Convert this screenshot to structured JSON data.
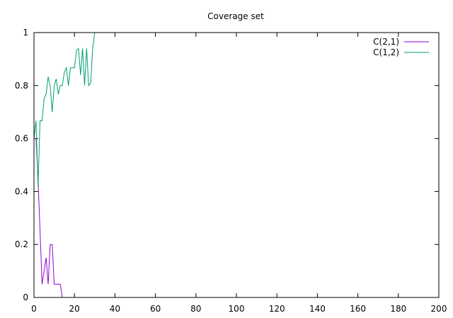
{
  "chart_data": {
    "type": "line",
    "title": "Coverage set",
    "xlabel": "",
    "ylabel": "",
    "xlim": [
      0,
      200
    ],
    "ylim": [
      0,
      1
    ],
    "xticks": [
      0,
      20,
      40,
      60,
      80,
      100,
      120,
      140,
      160,
      180,
      200
    ],
    "yticks": [
      0,
      0.2,
      0.4,
      0.6,
      0.8,
      1
    ],
    "ytick_labels": [
      "0",
      "0.2",
      "0.4",
      "0.6",
      "0.8",
      "1"
    ],
    "grid": false,
    "legend_position": "top-right",
    "series": [
      {
        "name": "C(2,1)",
        "color": "#9400d3",
        "x": [
          0,
          1,
          2,
          3,
          4,
          5,
          6,
          7,
          8,
          9,
          10,
          11,
          12,
          13,
          14,
          15,
          20,
          40,
          60,
          80,
          100,
          120,
          140,
          160,
          180,
          200
        ],
        "y": [
          0.6,
          0.6,
          0.45,
          0.25,
          0.05,
          0.1,
          0.15,
          0.05,
          0.2,
          0.2,
          0.05,
          0.05,
          0.05,
          0.05,
          0,
          0,
          0,
          0,
          0,
          0,
          0,
          0,
          0,
          0,
          0,
          0
        ]
      },
      {
        "name": "C(1,2)",
        "color": "#009e73",
        "x": [
          0,
          1,
          2,
          3,
          4,
          5,
          6,
          7,
          8,
          9,
          10,
          11,
          12,
          13,
          14,
          15,
          16,
          17,
          18,
          19,
          20,
          21,
          22,
          23,
          24,
          25,
          26,
          27,
          28,
          29,
          30,
          40,
          60,
          80,
          100,
          120,
          140,
          160,
          180,
          200
        ],
        "y": [
          0.6,
          0.667,
          0.42,
          0.667,
          0.667,
          0.75,
          0.767,
          0.833,
          0.8,
          0.7,
          0.8,
          0.825,
          0.767,
          0.8,
          0.8,
          0.85,
          0.867,
          0.8,
          0.867,
          0.867,
          0.867,
          0.933,
          0.94,
          0.84,
          0.94,
          0.8,
          0.94,
          0.8,
          0.81,
          0.94,
          1,
          1,
          1,
          1,
          1,
          1,
          1,
          1,
          1,
          1
        ]
      }
    ]
  }
}
